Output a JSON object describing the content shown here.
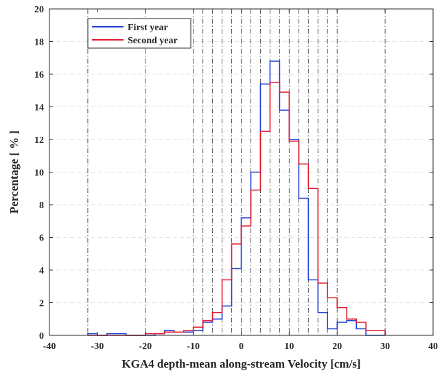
{
  "chart_data": {
    "type": "histogram-step",
    "xlabel": "KGA4 depth-mean along-stream Velocity [cm/s]",
    "ylabel": "Percentage [ % ]",
    "xlim": [
      -40,
      40
    ],
    "ylim": [
      0,
      20
    ],
    "xticks": [
      -40,
      -30,
      -20,
      -10,
      0,
      10,
      20,
      30,
      40
    ],
    "yticks": [
      0,
      2,
      4,
      6,
      8,
      10,
      12,
      14,
      16,
      18,
      20
    ],
    "legend_position": "top-left",
    "grid": "horizontal dashed light",
    "vertical_reference_lines": [
      -32,
      -20,
      -10,
      -8,
      -6,
      -4,
      -2,
      0,
      2,
      4,
      6,
      8,
      10,
      12,
      14,
      16,
      18,
      20,
      30
    ],
    "bin_edges": [
      -32,
      -30,
      -28,
      -26,
      -24,
      -22,
      -20,
      -18,
      -16,
      -14,
      -12,
      -10,
      -8,
      -6,
      -4,
      -2,
      0,
      2,
      4,
      6,
      8,
      10,
      12,
      14,
      16,
      18,
      20,
      22,
      24,
      26,
      28,
      30
    ],
    "series": [
      {
        "name": "First year",
        "color": "#1f3fd6",
        "values": [
          0.1,
          0.0,
          0.1,
          0.1,
          0.0,
          0.0,
          0.0,
          0.1,
          0.3,
          0.2,
          0.2,
          0.3,
          0.8,
          1.0,
          1.8,
          4.1,
          7.2,
          10.0,
          15.4,
          16.8,
          13.8,
          12.0,
          8.4,
          3.4,
          1.4,
          0.4,
          0.8,
          0.9,
          0.4,
          0.0,
          0.0
        ]
      },
      {
        "name": "Second year",
        "color": "#e0192b",
        "values": [
          0.0,
          0.0,
          0.0,
          0.0,
          0.0,
          0.0,
          0.1,
          0.1,
          0.2,
          0.2,
          0.3,
          0.5,
          0.9,
          1.4,
          3.4,
          5.6,
          6.7,
          8.9,
          12.5,
          15.5,
          14.9,
          11.9,
          10.5,
          9.0,
          3.2,
          2.3,
          1.7,
          1.0,
          0.8,
          0.3,
          0.3
        ]
      }
    ]
  }
}
